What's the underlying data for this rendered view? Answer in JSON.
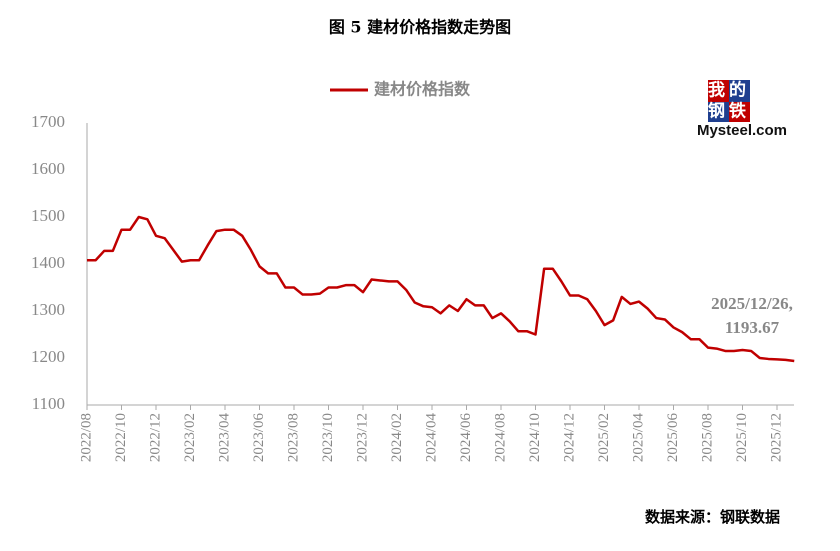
{
  "chart_data": {
    "type": "line",
    "title": "图 5  建材价格指数走势图",
    "source": "数据来源：钢联数据",
    "watermark": [
      "我的",
      "钢铁",
      "Mysteel.com"
    ],
    "annotation": [
      "2025/12/26,",
      "1193.67"
    ],
    "categories": [
      "2022/08",
      null,
      null,
      null,
      "2022/10",
      null,
      null,
      null,
      "2022/12",
      null,
      null,
      null,
      "2023/02",
      null,
      null,
      null,
      "2023/04",
      null,
      null,
      null,
      "2023/06",
      null,
      null,
      null,
      "2023/08",
      null,
      null,
      null,
      "2023/10",
      null,
      null,
      null,
      "2023/12",
      null,
      null,
      null,
      "2024/02",
      null,
      null,
      null,
      "2024/04",
      null,
      null,
      null,
      "2024/06",
      null,
      null,
      null,
      "2024/08",
      null,
      null,
      null,
      "2024/10",
      null,
      null,
      null,
      "2024/12",
      null,
      null,
      null,
      "2025/02",
      null,
      null,
      null,
      "2025/04",
      null,
      null,
      null,
      "2025/06",
      null,
      null,
      null,
      "2025/08",
      null,
      null,
      null,
      "2025/10",
      null,
      null,
      null,
      "2025/12",
      null,
      null
    ],
    "series": [
      {
        "name": "建材价格指数",
        "color": "#c00000",
        "values": [
          1408,
          1408,
          1428,
          1428,
          1473,
          1473,
          1500,
          1495,
          1460,
          1455,
          1430,
          1405,
          1408,
          1408,
          1440,
          1470,
          1473,
          1473,
          1460,
          1430,
          1395,
          1380,
          1380,
          1350,
          1350,
          1335,
          1335,
          1337,
          1350,
          1350,
          1355,
          1355,
          1340,
          1367,
          1365,
          1363,
          1363,
          1345,
          1318,
          1310,
          1308,
          1295,
          1312,
          1300,
          1325,
          1312,
          1312,
          1285,
          1295,
          1278,
          1257,
          1257,
          1250,
          1390,
          1390,
          1363,
          1333,
          1333,
          1325,
          1300,
          1270,
          1280,
          1330,
          1315,
          1320,
          1305,
          1285,
          1282,
          1265,
          1255,
          1240,
          1240,
          1222,
          1220,
          1215,
          1215,
          1217,
          1215,
          1200,
          1198,
          1197,
          1196,
          1193.67
        ]
      }
    ],
    "ylim": [
      1100,
      1700
    ],
    "yticks": [
      1100,
      1200,
      1300,
      1400,
      1500,
      1600,
      1700
    ],
    "grid": false,
    "legend": "top"
  }
}
